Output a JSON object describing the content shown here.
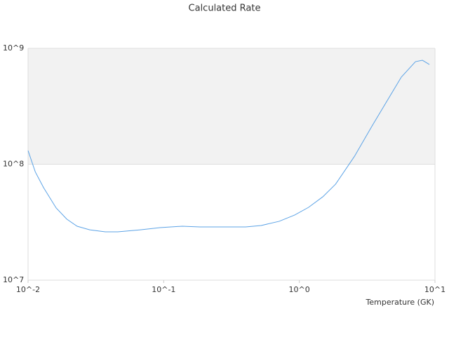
{
  "chart_data": {
    "type": "line",
    "title": "Calculated Rate",
    "x_label": "Temperature (GK)",
    "x_scale": "log",
    "y_scale": "log",
    "band_fill": "#f2f2f2",
    "xlim": [
      0.01,
      10
    ],
    "ylim": [
      10000000,
      1000000000
    ],
    "xticks": [
      {
        "value": 0.01,
        "label": "10^-2"
      },
      {
        "value": 0.1,
        "label": "10^-1"
      },
      {
        "value": 1,
        "label": "10^0"
      },
      {
        "value": 10,
        "label": "10^1"
      }
    ],
    "yticks": [
      {
        "value": 10000000,
        "label": "10^7"
      },
      {
        "value": 100000000,
        "label": "10^8"
      },
      {
        "value": 1000000000,
        "label": "10^9"
      }
    ],
    "series": [
      {
        "color": "#5ca3e6",
        "x": [
          0.01,
          0.0113,
          0.013,
          0.0161,
          0.0193,
          0.023,
          0.0285,
          0.0371,
          0.0459,
          0.0673,
          0.094,
          0.137,
          0.185,
          0.281,
          0.402,
          0.522,
          0.711,
          0.925,
          1.17,
          1.49,
          1.85,
          2.55,
          3.43,
          4.25,
          5.65,
          7.18,
          8.08,
          9.1
        ],
        "values": [
          131000000,
          86000000,
          63000000,
          42000000,
          33600000,
          29200000,
          27200000,
          26100000,
          26100000,
          27200000,
          28400000,
          29200000,
          28800000,
          28800000,
          28800000,
          29600000,
          32200000,
          36500000,
          42500000,
          52400000,
          67300000,
          117000000,
          213000000,
          324000000,
          565000000,
          767000000,
          789000000,
          726000000
        ]
      }
    ]
  }
}
